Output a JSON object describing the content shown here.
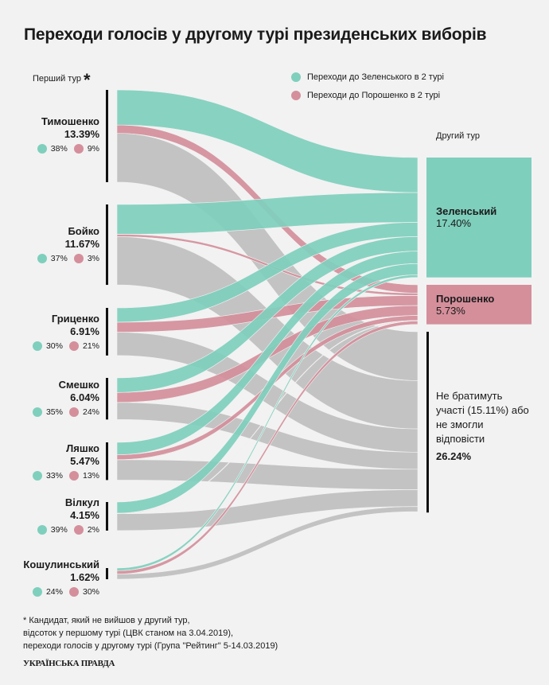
{
  "title": "Переходи голосів у другому турі президенських виборів",
  "first_round_label": "Перший тур",
  "first_round_asterisk": "*",
  "second_round_label": "Другий тур",
  "legend": [
    {
      "label": "Переходи до Зеленського в 2 турі",
      "color": "#7fcfbd"
    },
    {
      "label": "Переходи до Порошенко в 2 турі",
      "color": "#d48f9b"
    }
  ],
  "colors": {
    "zelensky": "#7fcfbd",
    "poroshenko": "#d48f9b",
    "other": "#c0c0c0",
    "bar": "#111111"
  },
  "chart_data": {
    "type": "sankey",
    "units": "% of voters",
    "sources": [
      {
        "name": "Тимошенко",
        "value": 13.39,
        "value_label": "13.39%",
        "to_zelensky": 38,
        "to_zelensky_label": "38%",
        "to_poroshenko": 9,
        "to_poroshenko_label": "9%"
      },
      {
        "name": "Бойко",
        "value": 11.67,
        "value_label": "11.67%",
        "to_zelensky": 37,
        "to_zelensky_label": "37%",
        "to_poroshenko": 3,
        "to_poroshenko_label": "3%"
      },
      {
        "name": "Гриценко",
        "value": 6.91,
        "value_label": "6.91%",
        "to_zelensky": 30,
        "to_zelensky_label": "30%",
        "to_poroshenko": 21,
        "to_poroshenko_label": "21%"
      },
      {
        "name": "Смешко",
        "value": 6.04,
        "value_label": "6.04%",
        "to_zelensky": 35,
        "to_zelensky_label": "35%",
        "to_poroshenko": 24,
        "to_poroshenko_label": "24%"
      },
      {
        "name": "Ляшко",
        "value": 5.47,
        "value_label": "5.47%",
        "to_zelensky": 33,
        "to_zelensky_label": "33%",
        "to_poroshenko": 13,
        "to_poroshenko_label": "13%"
      },
      {
        "name": "Вілкул",
        "value": 4.15,
        "value_label": "4.15%",
        "to_zelensky": 39,
        "to_zelensky_label": "39%",
        "to_poroshenko": 2,
        "to_poroshenko_label": "2%"
      },
      {
        "name": "Кошулинський",
        "value": 1.62,
        "value_label": "1.62%",
        "to_zelensky": 24,
        "to_zelensky_label": "24%",
        "to_poroshenko": 30,
        "to_poroshenko_label": "30%"
      }
    ],
    "targets": [
      {
        "name": "Зеленський",
        "value": 17.4,
        "value_label": "17.40%"
      },
      {
        "name": "Порошенко",
        "value": 5.73,
        "value_label": "5.73%"
      },
      {
        "name": "Не братимуть участі (15.11%) або не змогли відповісти",
        "value": 26.24,
        "value_label": "26.24%"
      }
    ]
  },
  "footnote": [
    "* Кандидат, який не вийшов у другий тур,",
    "відсоток у першому турі (ЦВК станом на 3.04.2019),",
    "переходи голосів у другому турі (Група \"Рейтинг\" 5-14.03.2019)"
  ],
  "logo": "УКРАЇНСЬКА ПРАВДА"
}
